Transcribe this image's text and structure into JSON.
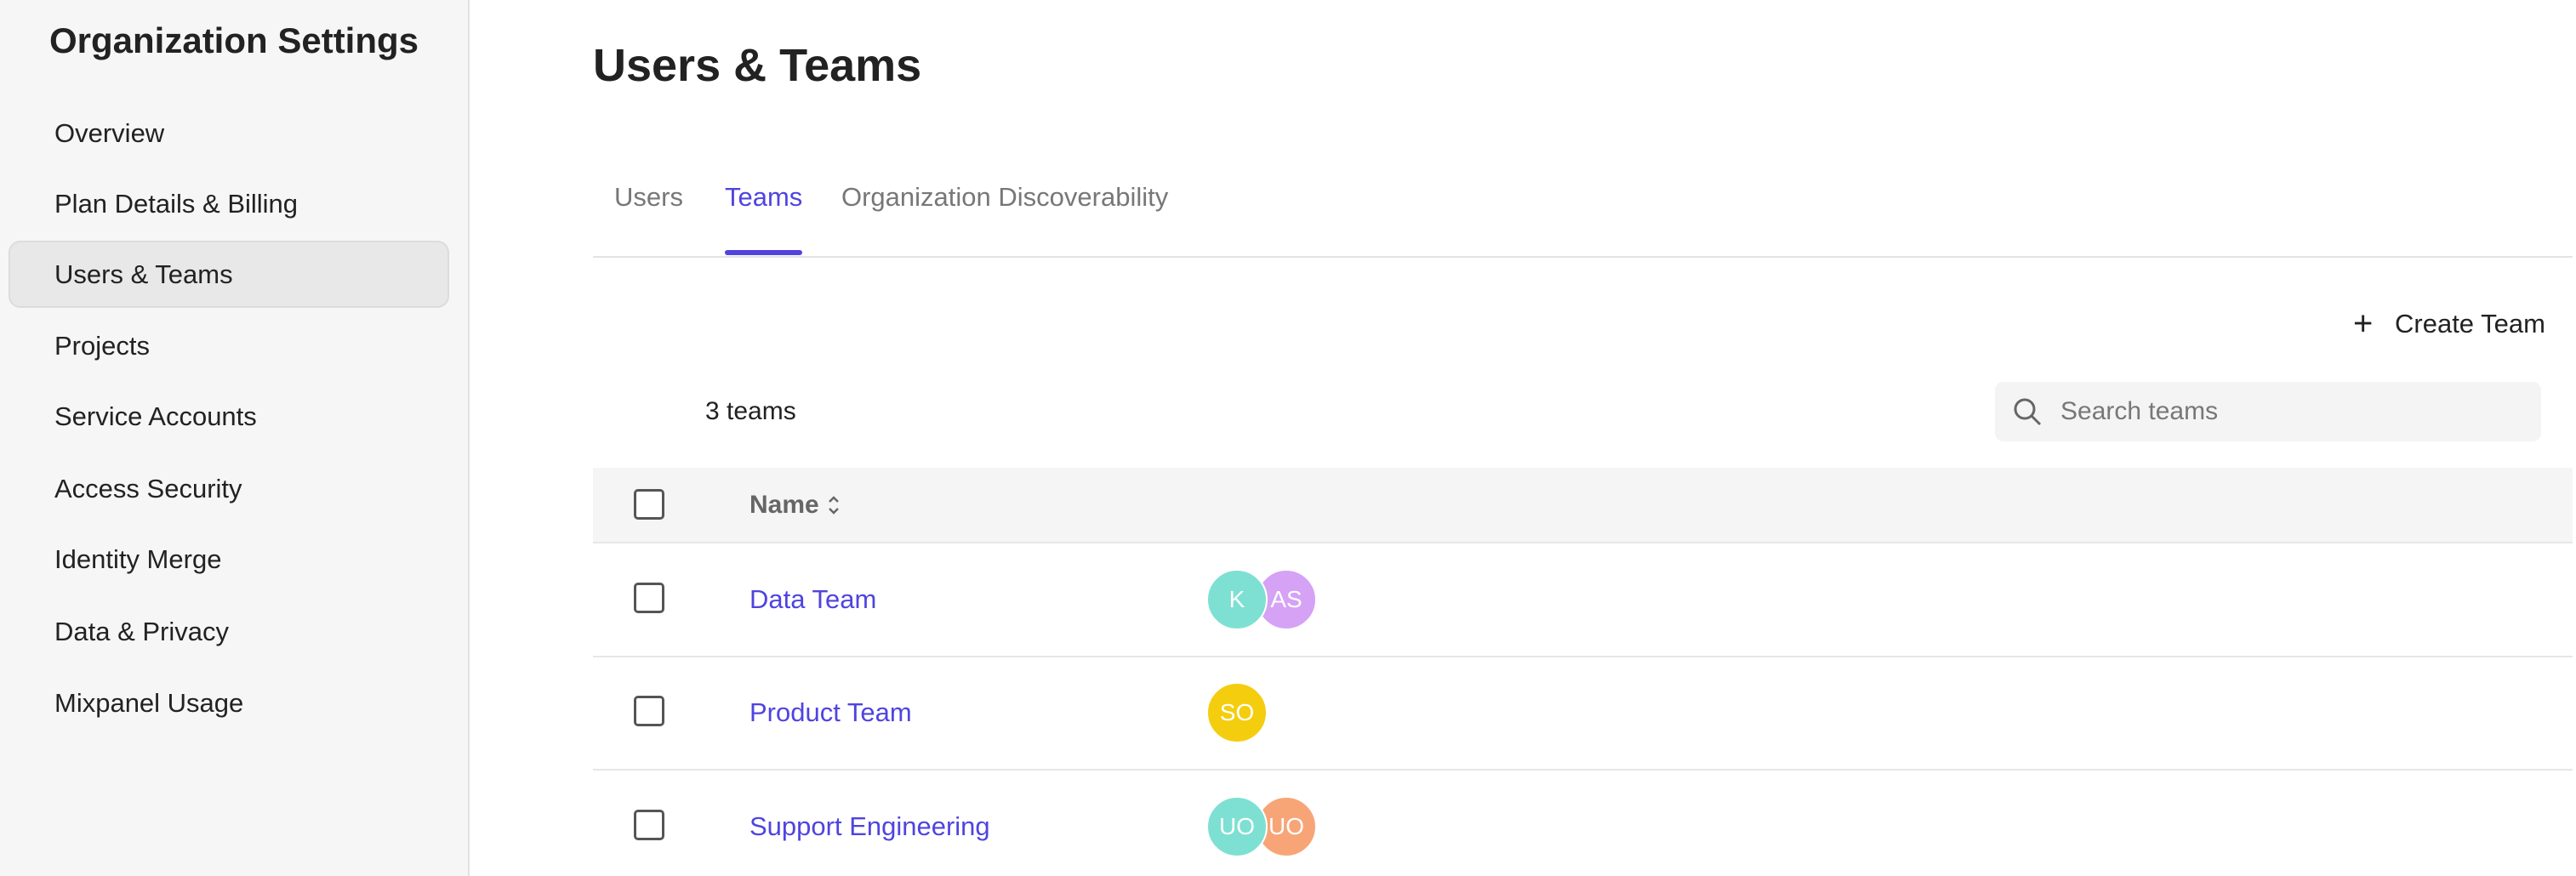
{
  "sidebar": {
    "title": "Organization Settings",
    "items": [
      "Overview",
      "Plan Details & Billing",
      "Users & Teams",
      "Projects",
      "Service Accounts",
      "Access Security",
      "Identity Merge",
      "Data & Privacy",
      "Mixpanel Usage"
    ],
    "selected": 2
  },
  "page": {
    "title": "Users & Teams",
    "tabs": [
      "Users",
      "Teams",
      "Organization Discoverability"
    ],
    "active_tab": 1,
    "create_button": "Create Team",
    "count": "3 teams",
    "search_placeholder": "Search teams"
  },
  "table": {
    "header": "Name",
    "rows": [
      {
        "name": "Data Team",
        "members": [
          {
            "initials": "K",
            "color": "#7ee0d2"
          },
          {
            "initials": "AS",
            "color": "#d5a2f5"
          }
        ]
      },
      {
        "name": "Product Team",
        "members": [
          {
            "initials": "SO",
            "color": "#f5cd0f"
          }
        ]
      },
      {
        "name": "Support Engineering",
        "members": [
          {
            "initials": "UO",
            "color": "#7ee0d2"
          },
          {
            "initials": "UO",
            "color": "#f7a577"
          }
        ]
      }
    ]
  }
}
